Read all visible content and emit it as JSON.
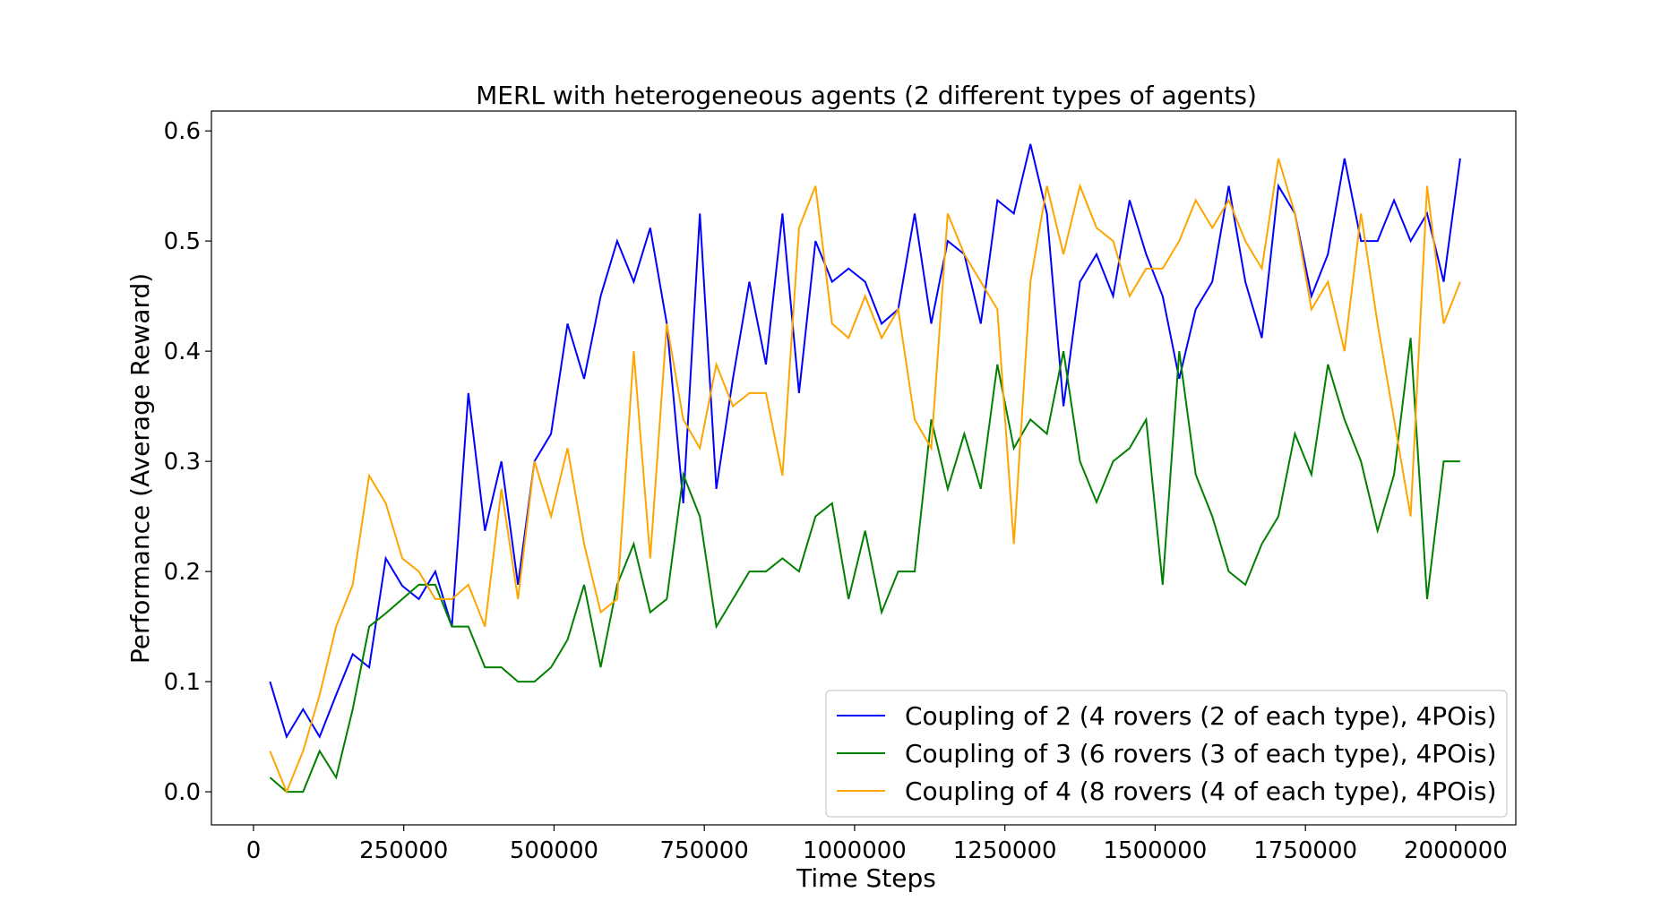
{
  "chart_data": {
    "type": "line",
    "title": "MERL with heterogeneous agents (2 different types of agents)",
    "xlabel": "Time Steps",
    "ylabel": "Performance (Average Reward)",
    "xlim": [
      -70000,
      2100000
    ],
    "ylim": [
      -0.03,
      0.618
    ],
    "xticks": [
      0,
      250000,
      500000,
      750000,
      1000000,
      1250000,
      1500000,
      1750000,
      2000000
    ],
    "xtick_labels": [
      "0",
      "250000",
      "500000",
      "750000",
      "1000000",
      "1250000",
      "1500000",
      "1750000",
      "2000000"
    ],
    "yticks": [
      0.0,
      0.1,
      0.2,
      0.3,
      0.4,
      0.5,
      0.6
    ],
    "ytick_labels": [
      "0.0",
      "0.1",
      "0.2",
      "0.3",
      "0.4",
      "0.5",
      "0.6"
    ],
    "grid": false,
    "legend_position": "bottom-right",
    "x": [
      27500,
      55000,
      82500,
      110000,
      137500,
      165000,
      192500,
      220000,
      247500,
      275000,
      302500,
      330000,
      357500,
      385000,
      412500,
      440000,
      467500,
      495000,
      522500,
      550000,
      577500,
      605000,
      632500,
      660000,
      687500,
      715000,
      742500,
      770000,
      797500,
      825000,
      852500,
      880000,
      907500,
      935000,
      962500,
      990000,
      1017500,
      1045000,
      1072500,
      1100000,
      1127500,
      1155000,
      1182500,
      1210000,
      1237500,
      1265000,
      1292500,
      1320000,
      1347500,
      1375000,
      1402500,
      1430000,
      1457500,
      1485000,
      1512500,
      1540000,
      1567500,
      1595000,
      1622500,
      1650000,
      1677500,
      1705000,
      1732500,
      1760000,
      1787500,
      1815000,
      1842500,
      1870000,
      1897500,
      1925000,
      1952500,
      1980000,
      2007500
    ],
    "series": [
      {
        "name": "Coupling of 2 (4 rovers (2 of each type), 4POis)",
        "color": "#0000ff",
        "values": [
          0.1,
          0.05,
          0.075,
          0.05,
          0.088,
          0.125,
          0.113,
          0.212,
          0.187,
          0.175,
          0.2,
          0.15,
          0.362,
          0.237,
          0.3,
          0.188,
          0.3,
          0.325,
          0.425,
          0.375,
          0.45,
          0.5,
          0.463,
          0.512,
          0.425,
          0.262,
          0.525,
          0.275,
          0.375,
          0.463,
          0.388,
          0.525,
          0.362,
          0.5,
          0.463,
          0.475,
          0.463,
          0.425,
          0.438,
          0.525,
          0.425,
          0.5,
          0.488,
          0.425,
          0.537,
          0.525,
          0.588,
          0.525,
          0.35,
          0.463,
          0.488,
          0.45,
          0.537,
          0.488,
          0.45,
          0.375,
          0.438,
          0.463,
          0.55,
          0.463,
          0.412,
          0.55,
          0.525,
          0.45,
          0.488,
          0.575,
          0.5,
          0.5,
          0.537,
          0.5,
          0.525,
          0.463,
          0.575
        ]
      },
      {
        "name": "Coupling of 3 (6 rovers (3 of each type), 4POis)",
        "color": "#008000",
        "values": [
          0.013,
          0.0,
          0.0,
          0.037,
          0.013,
          0.075,
          0.15,
          0.162,
          0.175,
          0.188,
          0.188,
          0.15,
          0.15,
          0.113,
          0.113,
          0.1,
          0.1,
          0.113,
          0.138,
          0.188,
          0.113,
          0.188,
          0.225,
          0.163,
          0.175,
          0.288,
          0.25,
          0.15,
          0.175,
          0.2,
          0.2,
          0.212,
          0.2,
          0.25,
          0.262,
          0.175,
          0.237,
          0.163,
          0.2,
          0.2,
          0.338,
          0.275,
          0.325,
          0.275,
          0.388,
          0.312,
          0.338,
          0.325,
          0.4,
          0.3,
          0.263,
          0.3,
          0.312,
          0.338,
          0.188,
          0.4,
          0.288,
          0.25,
          0.2,
          0.188,
          0.225,
          0.25,
          0.325,
          0.288,
          0.388,
          0.338,
          0.3,
          0.237,
          0.288,
          0.412,
          0.175,
          0.3,
          0.3
        ]
      },
      {
        "name": "Coupling of 4 (8 rovers (4 of each type), 4POis)",
        "color": "#ffa500",
        "values": [
          0.037,
          0.0,
          0.037,
          0.088,
          0.15,
          0.188,
          0.287,
          0.262,
          0.212,
          0.2,
          0.175,
          0.175,
          0.188,
          0.15,
          0.275,
          0.175,
          0.3,
          0.25,
          0.312,
          0.225,
          0.163,
          0.175,
          0.4,
          0.212,
          0.425,
          0.338,
          0.312,
          0.388,
          0.35,
          0.362,
          0.362,
          0.287,
          0.512,
          0.55,
          0.425,
          0.412,
          0.45,
          0.412,
          0.438,
          0.338,
          0.312,
          0.525,
          0.488,
          0.463,
          0.438,
          0.225,
          0.463,
          0.55,
          0.488,
          0.55,
          0.512,
          0.5,
          0.45,
          0.475,
          0.475,
          0.5,
          0.537,
          0.512,
          0.537,
          0.5,
          0.475,
          0.575,
          0.525,
          0.438,
          0.463,
          0.4,
          0.525,
          0.425,
          0.338,
          0.25,
          0.55,
          0.425,
          0.463
        ]
      }
    ]
  }
}
